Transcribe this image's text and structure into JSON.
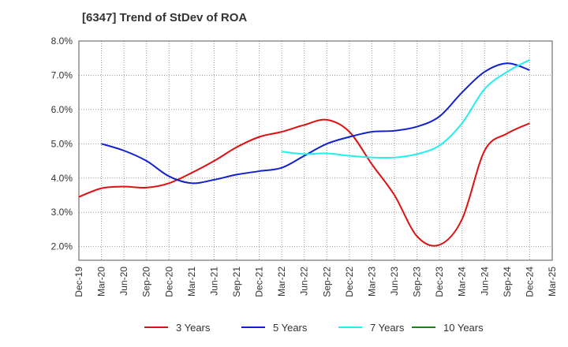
{
  "chart_data": {
    "type": "line",
    "title": "[6347]  Trend of StDev of ROA",
    "xlabel": "",
    "ylabel": "",
    "x": [
      "Dec-19",
      "Mar-20",
      "Jun-20",
      "Sep-20",
      "Dec-20",
      "Mar-21",
      "Jun-21",
      "Sep-21",
      "Dec-21",
      "Mar-22",
      "Jun-22",
      "Sep-22",
      "Dec-22",
      "Mar-23",
      "Jun-23",
      "Sep-23",
      "Dec-23",
      "Mar-24",
      "Jun-24",
      "Sep-24",
      "Dec-24",
      "Mar-25"
    ],
    "ylim": [
      1.6,
      8.0
    ],
    "yticks": [
      "2.0%",
      "3.0%",
      "4.0%",
      "5.0%",
      "6.0%",
      "7.0%",
      "8.0%"
    ],
    "ytick_values": [
      2.0,
      3.0,
      4.0,
      5.0,
      6.0,
      7.0,
      8.0
    ],
    "grid": true,
    "legend_position": "bottom",
    "series": [
      {
        "name": "3 Years",
        "color": "#dd1111",
        "values": [
          3.45,
          3.7,
          3.75,
          3.72,
          3.85,
          4.15,
          4.5,
          4.9,
          5.2,
          5.35,
          5.55,
          5.7,
          5.35,
          4.4,
          3.5,
          2.3,
          2.05,
          2.8,
          4.8,
          5.3,
          5.6,
          null
        ]
      },
      {
        "name": "5 Years",
        "color": "#1122cc",
        "values": [
          null,
          5.0,
          4.8,
          4.5,
          4.05,
          3.85,
          3.95,
          4.1,
          4.2,
          4.3,
          4.65,
          5.0,
          5.2,
          5.35,
          5.38,
          5.5,
          5.8,
          6.5,
          7.1,
          7.35,
          7.15,
          null
        ]
      },
      {
        "name": "7 Years",
        "color": "#22eeee",
        "values": [
          null,
          null,
          null,
          null,
          null,
          null,
          null,
          null,
          null,
          4.77,
          4.7,
          4.72,
          4.65,
          4.6,
          4.6,
          4.7,
          4.95,
          5.6,
          6.6,
          7.1,
          7.45,
          null
        ]
      },
      {
        "name": "10 Years",
        "color": "#118811",
        "values": [
          null,
          null,
          null,
          null,
          null,
          null,
          null,
          null,
          null,
          null,
          null,
          null,
          null,
          null,
          null,
          null,
          null,
          null,
          null,
          null,
          null,
          null
        ]
      }
    ]
  }
}
